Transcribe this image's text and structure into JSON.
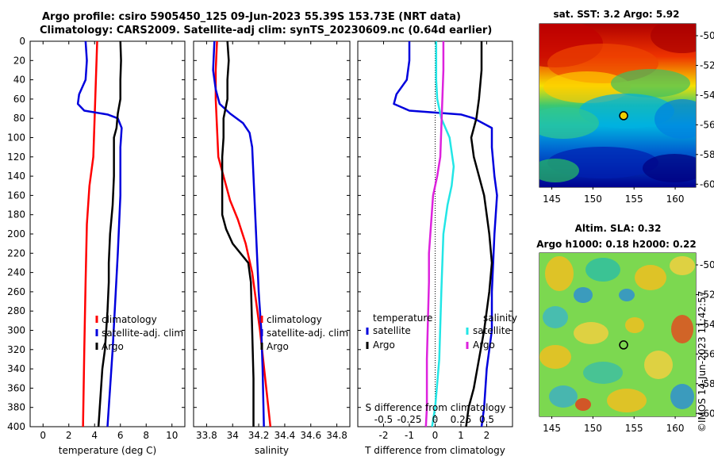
{
  "title": {
    "line1": "Argo profile: csiro 5905450_125 09-Jun-2023 55.39S 153.73E (NRT data)",
    "line2": "Climatology: CARS2009. Satellite-adj clim: synTS_20230609.nc (0.64d earlier)"
  },
  "credit": "©IMOS 14-Jun-2023 11:42:57",
  "colors": {
    "red": "#ff0000",
    "blue": "#0000dd",
    "black": "#000000",
    "cyan": "#22e6e6",
    "magenta": "#dd22dd"
  },
  "chart_data": [
    {
      "type": "line",
      "panel": "temperature",
      "xlabel": "temperature (deg C)",
      "xlim": [
        -1,
        11
      ],
      "xticks": [
        0,
        2,
        4,
        6,
        8,
        10
      ],
      "ylim": [
        400,
        0
      ],
      "yticks": [
        0,
        20,
        40,
        60,
        80,
        100,
        120,
        140,
        160,
        180,
        200,
        220,
        240,
        260,
        280,
        300,
        320,
        340,
        360,
        380,
        400
      ],
      "legend": [
        "climatology",
        "satellite-adj. clim",
        "Argo"
      ],
      "series": [
        {
          "name": "climatology",
          "color": "red",
          "points": [
            [
              4.2,
              0
            ],
            [
              4.1,
              40
            ],
            [
              4.0,
              80
            ],
            [
              3.9,
              120
            ],
            [
              3.6,
              150
            ],
            [
              3.4,
              190
            ],
            [
              3.3,
              250
            ],
            [
              3.2,
              320
            ],
            [
              3.1,
              400
            ]
          ]
        },
        {
          "name": "satellite-adj. clim",
          "color": "blue",
          "points": [
            [
              3.3,
              0
            ],
            [
              3.4,
              20
            ],
            [
              3.3,
              40
            ],
            [
              2.8,
              55
            ],
            [
              2.7,
              65
            ],
            [
              3.2,
              72
            ],
            [
              5.0,
              76
            ],
            [
              5.8,
              80
            ],
            [
              6.1,
              90
            ],
            [
              6.0,
              110
            ],
            [
              6.0,
              160
            ],
            [
              5.8,
              220
            ],
            [
              5.6,
              270
            ],
            [
              5.4,
              320
            ],
            [
              5.2,
              360
            ],
            [
              5.0,
              400
            ]
          ]
        },
        {
          "name": "Argo",
          "color": "black",
          "points": [
            [
              6.0,
              0
            ],
            [
              6.05,
              20
            ],
            [
              6.0,
              40
            ],
            [
              6.0,
              60
            ],
            [
              5.8,
              75
            ],
            [
              5.7,
              90
            ],
            [
              5.5,
              100
            ],
            [
              5.5,
              140
            ],
            [
              5.4,
              170
            ],
            [
              5.2,
              200
            ],
            [
              5.1,
              230
            ],
            [
              5.1,
              250
            ],
            [
              5.0,
              280
            ],
            [
              4.9,
              300
            ],
            [
              4.8,
              320
            ],
            [
              4.6,
              340
            ],
            [
              4.5,
              360
            ],
            [
              4.4,
              380
            ],
            [
              4.3,
              400
            ]
          ]
        }
      ]
    },
    {
      "type": "line",
      "panel": "salinity",
      "xlabel": "salinity",
      "xlim": [
        33.7,
        34.9
      ],
      "xticks": [
        33.8,
        34,
        34.2,
        34.4,
        34.6,
        34.8
      ],
      "xticklabels": [
        "33.8",
        "34",
        "34.2",
        "34.4",
        "34.6",
        "34.8"
      ],
      "ylim": [
        400,
        0
      ],
      "legend": [
        "climatology",
        "satellite-adj. clim",
        "Argo"
      ],
      "series": [
        {
          "name": "climatology",
          "color": "red",
          "points": [
            [
              33.88,
              0
            ],
            [
              33.87,
              30
            ],
            [
              33.87,
              60
            ],
            [
              33.88,
              90
            ],
            [
              33.89,
              120
            ],
            [
              33.93,
              140
            ],
            [
              33.98,
              165
            ],
            [
              34.04,
              185
            ],
            [
              34.1,
              210
            ],
            [
              34.15,
              240
            ],
            [
              34.18,
              270
            ],
            [
              34.21,
              300
            ],
            [
              34.25,
              350
            ],
            [
              34.29,
              400
            ]
          ]
        },
        {
          "name": "satellite-adj. clim",
          "color": "blue",
          "points": [
            [
              33.86,
              0
            ],
            [
              33.85,
              30
            ],
            [
              33.87,
              50
            ],
            [
              33.9,
              65
            ],
            [
              33.98,
              75
            ],
            [
              34.08,
              85
            ],
            [
              34.13,
              95
            ],
            [
              34.15,
              110
            ],
            [
              34.16,
              140
            ],
            [
              34.17,
              170
            ],
            [
              34.18,
              200
            ],
            [
              34.2,
              260
            ],
            [
              34.22,
              300
            ],
            [
              34.23,
              340
            ],
            [
              34.24,
              400
            ]
          ]
        },
        {
          "name": "Argo",
          "color": "black",
          "points": [
            [
              33.96,
              0
            ],
            [
              33.97,
              20
            ],
            [
              33.96,
              40
            ],
            [
              33.96,
              60
            ],
            [
              33.93,
              80
            ],
            [
              33.93,
              100
            ],
            [
              33.92,
              120
            ],
            [
              33.92,
              150
            ],
            [
              33.92,
              180
            ],
            [
              33.95,
              195
            ],
            [
              34.0,
              210
            ],
            [
              34.06,
              220
            ],
            [
              34.12,
              230
            ],
            [
              34.14,
              250
            ],
            [
              34.15,
              300
            ],
            [
              34.16,
              350
            ],
            [
              34.16,
              400
            ]
          ]
        }
      ]
    },
    {
      "type": "line",
      "panel": "difference",
      "xlabel": "T difference from climatology",
      "top_axis_label": "S difference from climatology",
      "xlim": [
        -3,
        3
      ],
      "xticks": [
        -2,
        -1,
        0,
        1,
        2
      ],
      "top_xticks": [
        -0.5,
        -0.25,
        0,
        0.25,
        0.5
      ],
      "top_xticklabels": [
        "-0.5",
        "-0.25",
        "0",
        "0.25",
        "0.5"
      ],
      "ylim": [
        400,
        0
      ],
      "legend_left_title": "temperature",
      "legend_right_title": "salinity",
      "legend": [
        "satellite",
        "Argo",
        "satellite",
        "Argo"
      ],
      "series": [
        {
          "name": "temperature satellite",
          "color": "blue",
          "points": [
            [
              -1.0,
              0
            ],
            [
              -1.0,
              20
            ],
            [
              -1.1,
              40
            ],
            [
              -1.5,
              55
            ],
            [
              -1.6,
              65
            ],
            [
              -1.0,
              72
            ],
            [
              1.0,
              76
            ],
            [
              1.5,
              80
            ],
            [
              2.2,
              90
            ],
            [
              2.2,
              110
            ],
            [
              2.3,
              140
            ],
            [
              2.4,
              160
            ],
            [
              2.3,
              200
            ],
            [
              2.2,
              260
            ],
            [
              2.2,
              300
            ],
            [
              2.0,
              340
            ],
            [
              1.9,
              380
            ],
            [
              1.8,
              400
            ]
          ]
        },
        {
          "name": "temperature Argo",
          "color": "black",
          "points": [
            [
              1.8,
              0
            ],
            [
              1.8,
              30
            ],
            [
              1.7,
              60
            ],
            [
              1.6,
              80
            ],
            [
              1.4,
              100
            ],
            [
              1.5,
              120
            ],
            [
              1.7,
              140
            ],
            [
              1.9,
              160
            ],
            [
              2.0,
              180
            ],
            [
              2.1,
              200
            ],
            [
              2.2,
              230
            ],
            [
              2.1,
              260
            ],
            [
              1.9,
              300
            ],
            [
              1.7,
              330
            ],
            [
              1.5,
              360
            ],
            [
              1.3,
              380
            ],
            [
              1.2,
              400
            ]
          ]
        },
        {
          "name": "salinity satellite",
          "color": "cyan",
          "points": [
            [
              0.01,
              0
            ],
            [
              0.01,
              40
            ],
            [
              0.02,
              60
            ],
            [
              0.06,
              80
            ],
            [
              0.14,
              100
            ],
            [
              0.18,
              130
            ],
            [
              0.16,
              150
            ],
            [
              0.12,
              170
            ],
            [
              0.08,
              200
            ],
            [
              0.06,
              260
            ],
            [
              0.04,
              330
            ],
            [
              0.0,
              380
            ],
            [
              -0.03,
              400
            ]
          ]
        },
        {
          "name": "salinity Argo",
          "color": "magenta",
          "points": [
            [
              0.08,
              0
            ],
            [
              0.08,
              30
            ],
            [
              0.07,
              60
            ],
            [
              0.06,
              90
            ],
            [
              0.05,
              120
            ],
            [
              0.02,
              140
            ],
            [
              -0.02,
              160
            ],
            [
              -0.04,
              190
            ],
            [
              -0.06,
              220
            ],
            [
              -0.06,
              250
            ],
            [
              -0.07,
              290
            ],
            [
              -0.08,
              330
            ],
            [
              -0.08,
              380
            ],
            [
              -0.09,
              400
            ]
          ]
        }
      ]
    },
    {
      "type": "heatmap",
      "panel": "sst-map",
      "title": "sat. SST: 3.2 Argo: 5.92",
      "xlim": [
        143.5,
        162.5
      ],
      "ylim": [
        -60.2,
        -49.2
      ],
      "xticks": [
        145,
        150,
        155,
        160
      ],
      "yticks": [
        -50,
        -52,
        -54,
        -56,
        -58,
        -60
      ],
      "marker": {
        "lon": 153.73,
        "lat": -55.39
      }
    },
    {
      "type": "heatmap",
      "panel": "sla-map",
      "title_line1": "Altim. SLA: 0.32",
      "title_line2": "Argo h1000: 0.18 h2000: 0.22",
      "xlim": [
        143.5,
        162.5
      ],
      "ylim": [
        -60.2,
        -49.2
      ],
      "xticks": [
        145,
        150,
        155,
        160
      ],
      "yticks": [
        -50,
        -52,
        -54,
        -56,
        -58,
        -60
      ],
      "marker": {
        "lon": 153.73,
        "lat": -55.39
      }
    }
  ]
}
